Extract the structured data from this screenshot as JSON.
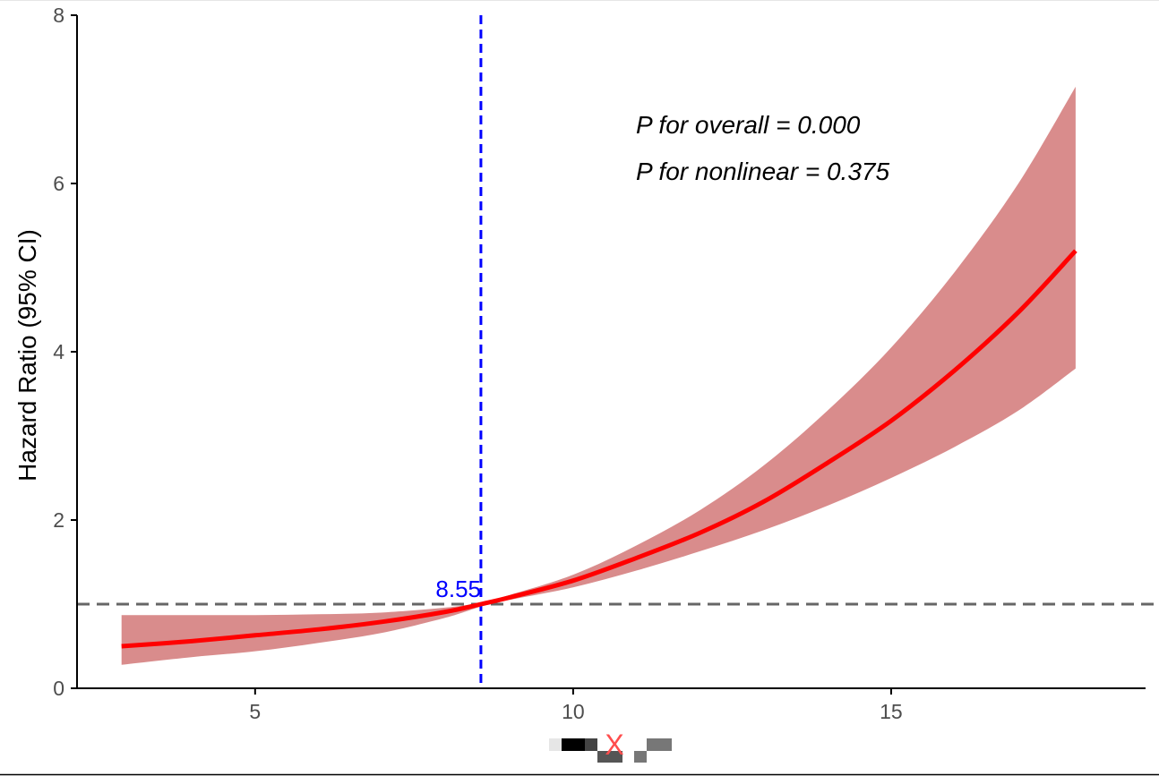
{
  "chart_data": {
    "type": "line",
    "ylabel": "Hazard Ratio (95% CI)",
    "xlabel_note": "x-axis label rendered as a pixelated/obscured glyph with a red X",
    "xlim": [
      2.2,
      19.0
    ],
    "ylim": [
      0,
      8
    ],
    "x_ticks": [
      5,
      10,
      15
    ],
    "y_ticks": [
      0,
      2,
      4,
      6,
      8
    ],
    "grid": false,
    "series": [
      {
        "x": [
          2.9,
          4,
          5,
          6,
          7,
          8,
          8.55,
          9,
          10,
          11,
          12,
          13,
          14,
          15,
          16,
          17,
          17.9
        ],
        "y": [
          0.5,
          0.56,
          0.63,
          0.7,
          0.79,
          0.91,
          1.0,
          1.08,
          1.28,
          1.55,
          1.85,
          2.22,
          2.68,
          3.18,
          3.78,
          4.47,
          5.2
        ],
        "lower": [
          0.28,
          0.37,
          0.44,
          0.54,
          0.66,
          0.84,
          0.97,
          1.05,
          1.2,
          1.4,
          1.63,
          1.88,
          2.17,
          2.5,
          2.87,
          3.3,
          3.8
        ],
        "upper": [
          0.87,
          0.87,
          0.87,
          0.88,
          0.9,
          0.96,
          1.02,
          1.11,
          1.35,
          1.7,
          2.12,
          2.65,
          3.3,
          4.05,
          4.95,
          6.0,
          7.15
        ],
        "color": "#ff0000",
        "band_color": "#d98c8c"
      }
    ],
    "reference_lines": {
      "horizontal_y": 1,
      "horizontal_color": "#666666",
      "vertical_x": 8.55,
      "vertical_color": "#0000ff",
      "vertical_label": "8.55"
    },
    "annotations": [
      "P for overall = 0.000",
      "P for nonlinear = 0.375"
    ]
  },
  "xlabel_glyph": "X"
}
